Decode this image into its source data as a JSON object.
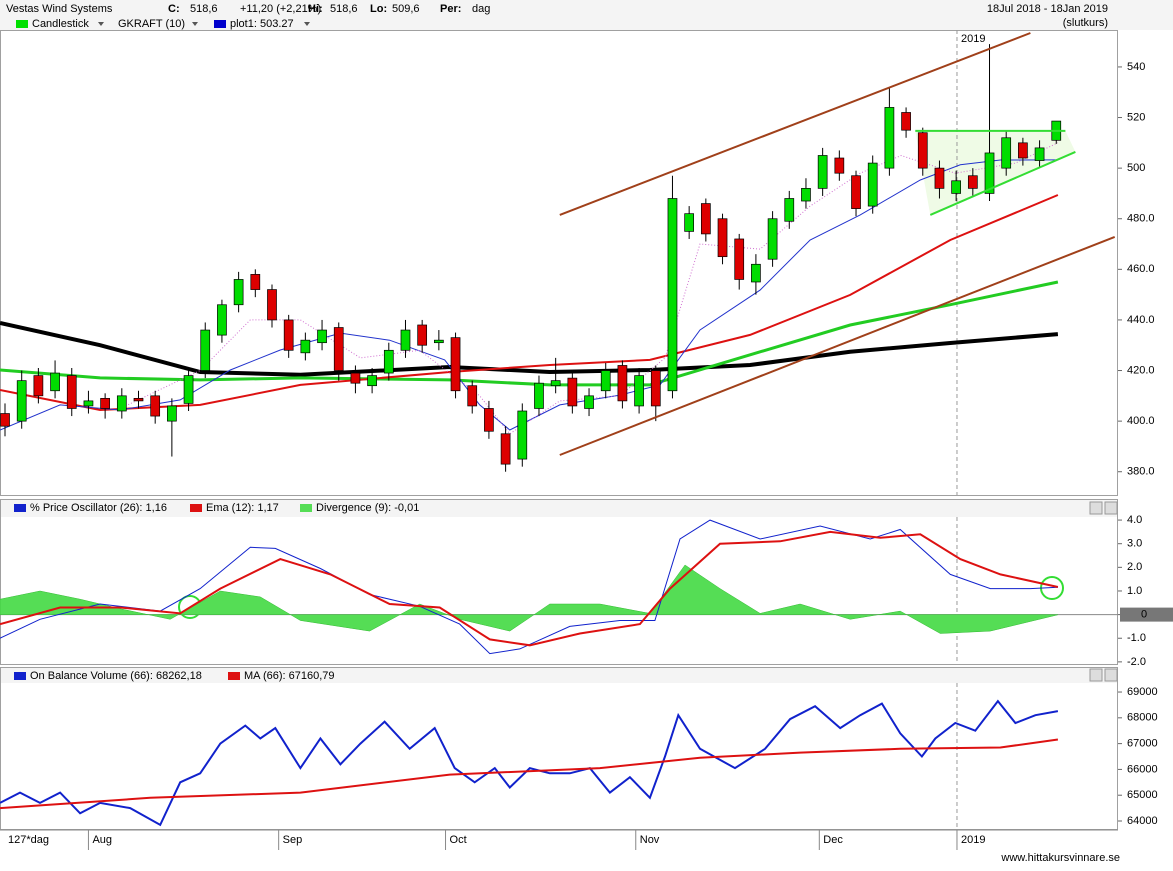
{
  "chart_data": [
    {
      "type": "candlestick",
      "title": "Vestas Wind Systems",
      "stats": [
        {
          "label": "C:",
          "value": "518,6"
        },
        {
          "value": "+11,20 (+2,21%)",
          "color": "#00aa00"
        },
        {
          "label": "Hi:",
          "value": "518,6"
        },
        {
          "label": "Lo:",
          "value": "509,6"
        },
        {
          "label": "Per:",
          "value": "dag"
        }
      ],
      "period": "18Jul 2018 - 18Jan 2019",
      "price_type": "(slutkurs)",
      "legend": [
        {
          "label": "Candlestick",
          "color": "#00e000"
        },
        {
          "label": "GKRAFT (10)"
        },
        {
          "label": "plot1: 503.27",
          "color": "#0000cc"
        }
      ],
      "xlim": [
        0,
        134
      ],
      "ylim": [
        370.8,
        554.6
      ],
      "yticks": [
        540,
        520,
        500,
        {
          "value": 480,
          "label": "480.0"
        },
        {
          "value": 460,
          "label": "460.0"
        },
        {
          "value": 440,
          "label": "440.0"
        },
        {
          "value": 420,
          "label": "420.0"
        },
        {
          "value": 400,
          "label": "400.0"
        },
        {
          "value": 380,
          "label": "380.0"
        }
      ],
      "x": [
        0.6,
        2.6,
        4.6,
        6.6,
        8.6,
        10.6,
        12.6,
        14.6,
        16.6,
        18.6,
        20.6,
        22.6,
        24.6,
        26.6,
        28.6,
        30.6,
        32.6,
        34.6,
        36.6,
        38.6,
        40.6,
        42.6,
        44.6,
        46.6,
        48.6,
        50.6,
        52.6,
        54.6,
        56.6,
        58.6,
        60.6,
        62.6,
        64.6,
        66.6,
        68.6,
        70.6,
        72.6,
        74.6,
        76.6,
        78.6,
        80.6,
        82.6,
        84.6,
        86.6,
        88.6,
        90.6,
        92.6,
        94.6,
        96.6,
        98.6,
        100.6,
        102.6,
        104.6,
        106.6,
        108.6,
        110.6,
        112.6,
        114.6,
        116.6,
        118.6,
        120.6,
        122.6,
        124.6,
        126.6
      ],
      "open": [
        403,
        400,
        418,
        412,
        418,
        406,
        409,
        404,
        409,
        410,
        400,
        407,
        420,
        434,
        446,
        458,
        452,
        440,
        427,
        431,
        437,
        419,
        414,
        419,
        428,
        438,
        431,
        433,
        414,
        405,
        395,
        385,
        405,
        414,
        417,
        405,
        412,
        422,
        406,
        420,
        412,
        475,
        486,
        480,
        472,
        455,
        464,
        479,
        487,
        492,
        504,
        497,
        485,
        500,
        522,
        514,
        500,
        490,
        497,
        490,
        500,
        510,
        503,
        511
      ],
      "high": [
        407,
        420,
        421,
        424,
        421,
        412,
        411,
        413,
        412,
        412,
        409,
        421,
        439,
        448,
        459,
        460,
        454,
        442,
        435,
        440,
        439,
        422,
        421,
        431,
        440,
        440,
        436,
        435,
        416,
        408,
        398,
        407,
        418,
        425,
        420,
        413,
        423,
        424,
        421,
        422,
        497,
        485,
        488,
        482,
        474,
        466,
        483,
        491,
        496,
        508,
        507,
        499,
        505,
        532,
        524,
        516,
        503,
        499,
        500,
        549,
        515,
        512,
        511,
        518.6
      ],
      "low": [
        394,
        397,
        407,
        409,
        402,
        403,
        401,
        401,
        405,
        399,
        386,
        404,
        417,
        431,
        443,
        449,
        437,
        425,
        424,
        428,
        416,
        411,
        411,
        416,
        425,
        427,
        428,
        409,
        403,
        393,
        380,
        382,
        402,
        411,
        403,
        402,
        409,
        405,
        403,
        400,
        409,
        472,
        471,
        462,
        452,
        450,
        461,
        476,
        484,
        489,
        495,
        481,
        482,
        497,
        512,
        497,
        488,
        487,
        489,
        487,
        497,
        501,
        500,
        509.6
      ],
      "close": [
        398,
        416,
        410,
        419,
        405,
        408,
        405,
        410,
        408,
        402,
        406,
        418,
        436,
        446,
        456,
        452,
        440,
        428,
        432,
        436,
        420,
        415,
        418,
        428,
        436,
        430,
        432,
        412,
        406,
        396,
        383,
        404,
        415,
        416,
        406,
        410,
        420,
        408,
        418,
        406,
        488,
        482,
        474,
        465,
        456,
        462,
        480,
        488,
        492,
        505,
        498,
        484,
        502,
        524,
        515,
        500,
        492,
        495,
        492,
        506,
        512,
        504,
        508,
        518.6
      ],
      "up_color": "#00dd00",
      "down_color": "#dd0000",
      "lines": [
        {
          "color": "#000000",
          "width": 4,
          "x": [
            0,
            12,
            24,
            36,
            53.9,
            65.9,
            77.9,
            89.9,
            101.9,
            113.9,
            126.8
          ],
          "values": [
            438.8,
            430,
            419.4,
            418.3,
            421.4,
            419.4,
            420.2,
            422.2,
            427.4,
            430.9,
            434.4
          ]
        },
        {
          "color": "#22cc22",
          "width": 3,
          "x": [
            0,
            12,
            24,
            36,
            53.9,
            65.9,
            77.9,
            89.9,
            101.9,
            113.9,
            126.8
          ],
          "values": [
            420.2,
            417.1,
            416.3,
            417.1,
            416.3,
            414.3,
            414.3,
            426.2,
            438,
            446,
            455
          ]
        },
        {
          "color": "#dd1111",
          "width": 2,
          "x": [
            0,
            12,
            24,
            36,
            53.9,
            65.9,
            77.9,
            89.9,
            101.9,
            113.9,
            126.8
          ],
          "values": [
            412.3,
            404.4,
            406.4,
            414.3,
            419.4,
            422.2,
            424.2,
            434.1,
            449.9,
            471.6,
            489.4
          ]
        },
        {
          "color": "#2233cc",
          "width": 1,
          "x": [
            0,
            7.2,
            14.4,
            21.6,
            27.6,
            33.6,
            40.8,
            46.7,
            53.3,
            57.5,
            61.1,
            67.1,
            74.3,
            79.1,
            83.9,
            91.1,
            97.1,
            103.1,
            110.3,
            115.1,
            119.9,
            126.8
          ],
          "values": [
            396.5,
            406.4,
            404.4,
            408.4,
            420.2,
            428.1,
            434.8,
            432,
            424.2,
            406.4,
            396.5,
            406.4,
            410.3,
            414.3,
            436,
            451.8,
            471.6,
            481.5,
            495.3,
            501.3,
            503.2,
            503.27
          ]
        },
        {
          "color": "#d070d0",
          "width": 1,
          "dotted": true,
          "x": [
            14.4,
            24,
            30,
            36,
            43.2,
            50.3,
            57.5,
            61.1,
            67.1,
            74.3,
            79.7,
            83.9,
            91.1,
            97.1,
            103.1,
            108,
            114.5,
            121.7,
            126.8
          ],
          "values": [
            405,
            420,
            440,
            440,
            425,
            428,
            410,
            395,
            408,
            410,
            425,
            470,
            468,
            485,
            498,
            505,
            498,
            502,
            510
          ]
        }
      ],
      "trendlines": [
        {
          "color": "#a0401a",
          "x": [
            67.1,
            123.5
          ],
          "values": [
            481.5,
            553.4
          ]
        },
        {
          "color": "#a0401a",
          "x": [
            67.1,
            133.6
          ],
          "values": [
            386.6,
            472.8
          ]
        },
        {
          "color": "#33dd33",
          "x": [
            109.7,
            127.7
          ],
          "values": [
            514.7,
            514.7
          ]
        },
        {
          "color": "#33dd33",
          "x": [
            111.5,
            128.9
          ],
          "values": [
            481.5,
            506.4
          ]
        }
      ],
      "pattern_fill": "#effbe6",
      "divider": {
        "x": 114.7,
        "label": "2019"
      }
    },
    {
      "type": "line",
      "xlim": [
        0,
        134
      ],
      "ylim": [
        -2.09,
        4.13
      ],
      "yticks": [
        {
          "value": 4,
          "label": "4.0"
        },
        {
          "value": 3,
          "label": "3.0"
        },
        {
          "value": 2,
          "label": "2.0"
        },
        {
          "value": 1,
          "label": "1.0"
        },
        0,
        {
          "value": -1,
          "label": "-1.0"
        },
        {
          "value": -2,
          "label": "-2.0"
        }
      ],
      "series": [
        {
          "name": "% Price Oscillator (26): 1,16",
          "color": "#1122cc",
          "x": [
            0,
            4.8,
            12,
            19.2,
            24,
            30,
            33,
            38.4,
            44.3,
            50.3,
            55.1,
            58.7,
            62.3,
            68.3,
            74.3,
            78.5,
            81.5,
            85.1,
            91.1,
            98.3,
            104.3,
            107.9,
            113.9,
            118.7,
            123.5,
            126.8
          ],
          "values": [
            -1.0,
            -0.2,
            0.45,
            0.15,
            1.1,
            2.85,
            2.8,
            1.95,
            0.85,
            0.35,
            -0.4,
            -1.65,
            -1.45,
            -0.5,
            -0.25,
            -0.25,
            3.2,
            4.0,
            3.2,
            3.75,
            3.2,
            3.6,
            1.7,
            1.1,
            1.1,
            1.16
          ]
        },
        {
          "name": "Ema (12): 1,17",
          "color": "#dd1111",
          "x": [
            0,
            7.2,
            14.4,
            21.6,
            26.4,
            33.6,
            39.6,
            46.7,
            52.7,
            58.7,
            63.5,
            69.5,
            76.7,
            80.3,
            86.3,
            93.5,
            99.5,
            105.5,
            110.3,
            115.1,
            119.9,
            126.8
          ],
          "values": [
            -0.4,
            0.3,
            0.3,
            0.05,
            1.1,
            2.35,
            1.7,
            0.45,
            0.3,
            -1.05,
            -1.3,
            -0.8,
            -0.4,
            1.1,
            3.0,
            3.1,
            3.5,
            3.25,
            3.4,
            2.35,
            1.7,
            1.17
          ]
        },
        {
          "name": "Divergence (9): -0,01",
          "color": "#55dd55",
          "area": true,
          "x": [
            0,
            4.8,
            9.6,
            14.4,
            20.4,
            26.4,
            31.2,
            36,
            44.3,
            50.3,
            55.1,
            61.1,
            65.9,
            71.9,
            77.9,
            82.1,
            86.3,
            91.1,
            95.9,
            101.9,
            107.9,
            112.7,
            118.7,
            126.8
          ],
          "values": [
            0.65,
            1.0,
            0.65,
            0.25,
            -0.2,
            1.0,
            0.75,
            -0.25,
            -0.7,
            0.45,
            -0.2,
            -0.7,
            0.45,
            0.45,
            0.05,
            2.1,
            1.1,
            0.05,
            0.45,
            -0.2,
            0.15,
            -0.8,
            -0.7,
            -0.01
          ]
        }
      ]
    },
    {
      "type": "line",
      "xlim": [
        0,
        134
      ],
      "ylim": [
        63690,
        69350
      ],
      "yticks": [
        69000,
        68000,
        67000,
        66000,
        65000,
        64000
      ],
      "xticks": [
        {
          "value": 10.6,
          "label": "Aug"
        },
        {
          "value": 33.4,
          "label": "Sep"
        },
        {
          "value": 53.4,
          "label": "Oct"
        },
        {
          "value": 76.2,
          "label": "Nov"
        },
        {
          "value": 98.2,
          "label": "Dec"
        },
        {
          "value": 114.7,
          "label": "2019"
        }
      ],
      "x_label": "127*dag",
      "series": [
        {
          "name": "On Balance Volume (66): 68262,18",
          "color": "#1122cc",
          "x": [
            0,
            2.4,
            4.8,
            7.2,
            9.6,
            12,
            15.6,
            19.2,
            21.6,
            24,
            26.4,
            29.4,
            31.2,
            33,
            36,
            38.4,
            40.8,
            43.2,
            46.1,
            49.1,
            52.1,
            54.5,
            56.9,
            59.3,
            61.1,
            63.5,
            65.9,
            68.3,
            70.7,
            73.1,
            75.5,
            77.9,
            79.7,
            81.3,
            83.9,
            88.1,
            91.7,
            94.7,
            97.7,
            100.7,
            103.1,
            105.7,
            107.9,
            110.5,
            112.1,
            114.5,
            116.9,
            119.6,
            121.7,
            124.1,
            126.8
          ],
          "values": [
            64700,
            65100,
            64700,
            65100,
            64300,
            64700,
            64500,
            63850,
            65500,
            65850,
            67000,
            67700,
            67200,
            67600,
            66050,
            67200,
            66200,
            67000,
            67850,
            66800,
            67600,
            66050,
            65500,
            66050,
            65300,
            66050,
            65850,
            65850,
            66050,
            65100,
            65700,
            64900,
            66500,
            68100,
            66800,
            66050,
            66800,
            67950,
            68450,
            67600,
            68100,
            68550,
            67400,
            66500,
            67200,
            67800,
            67500,
            68650,
            67800,
            68100,
            68262.18
          ]
        },
        {
          "name": "MA (66): 67160,79",
          "color": "#dd1111",
          "x": [
            0,
            18,
            36,
            53.9,
            71.9,
            83.9,
            95.9,
            107.9,
            119.9,
            126.8
          ],
          "values": [
            64500,
            64900,
            65100,
            65800,
            66050,
            66450,
            66650,
            66800,
            66850,
            67160.79
          ]
        }
      ],
      "footer": "www.hittakursvinnare.se"
    }
  ]
}
